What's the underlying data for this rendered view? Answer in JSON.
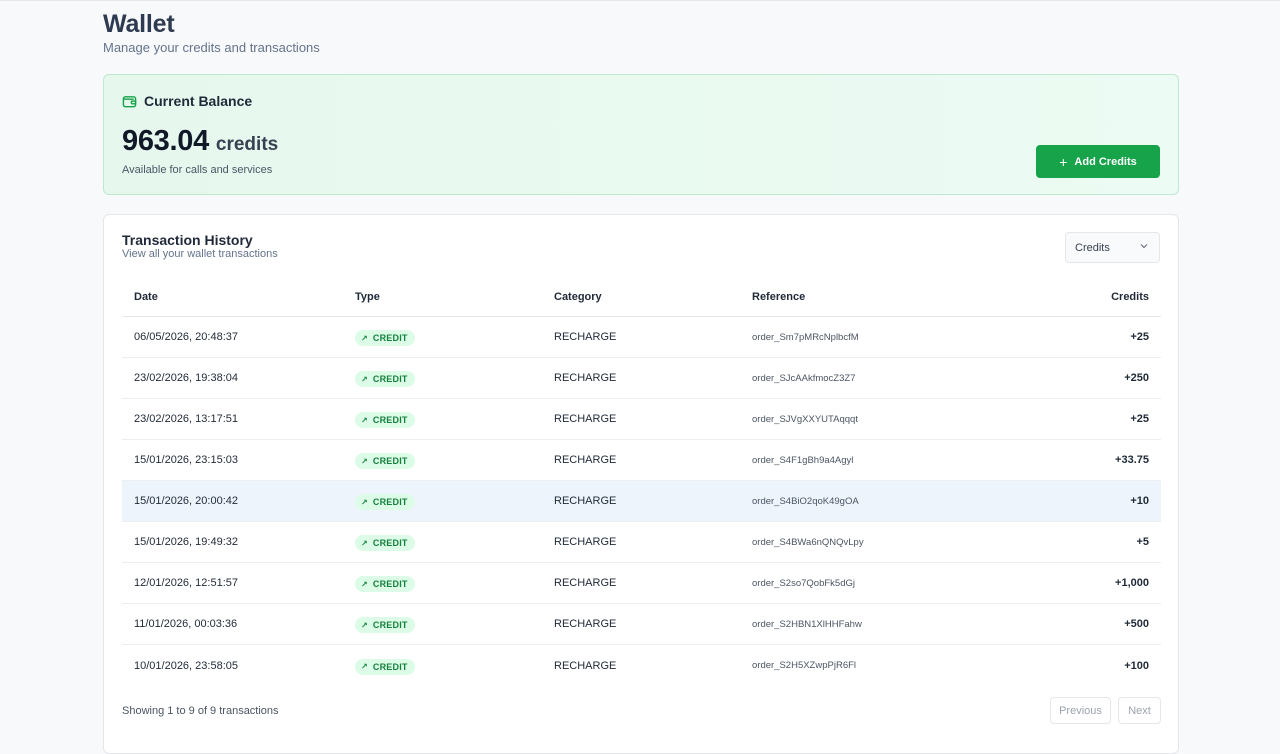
{
  "header": {
    "title": "Wallet",
    "subtitle": "Manage your credits and transactions"
  },
  "balance": {
    "title": "Current Balance",
    "icon": "wallet-icon",
    "amount": "963.04",
    "unit": "credits",
    "note": "Available for calls and services",
    "add_button_label": "Add Credits",
    "accent": "#16a34a"
  },
  "history": {
    "title": "Transaction History",
    "subtitle": "View all your wallet transactions",
    "filter_value": "Credits",
    "columns": [
      "Date",
      "Type",
      "Category",
      "Reference",
      "Credits"
    ],
    "rows": [
      {
        "date": "06/05/2026, 20:48:37",
        "type": "CREDIT",
        "category": "RECHARGE",
        "reference": "order_Sm7pMRcNplbcfM",
        "credits": "+25"
      },
      {
        "date": "23/02/2026, 19:38:04",
        "type": "CREDIT",
        "category": "RECHARGE",
        "reference": "order_SJcAAkfmocZ3Z7",
        "credits": "+250"
      },
      {
        "date": "23/02/2026, 13:17:51",
        "type": "CREDIT",
        "category": "RECHARGE",
        "reference": "order_SJVgXXYUTAqqqt",
        "credits": "+25"
      },
      {
        "date": "15/01/2026, 23:15:03",
        "type": "CREDIT",
        "category": "RECHARGE",
        "reference": "order_S4F1gBh9a4Agyl",
        "credits": "+33.75"
      },
      {
        "date": "15/01/2026, 20:00:42",
        "type": "CREDIT",
        "category": "RECHARGE",
        "reference": "order_S4BiO2qoK49gOA",
        "credits": "+10"
      },
      {
        "date": "15/01/2026, 19:49:32",
        "type": "CREDIT",
        "category": "RECHARGE",
        "reference": "order_S4BWa6nQNQvLpy",
        "credits": "+5"
      },
      {
        "date": "12/01/2026, 12:51:57",
        "type": "CREDIT",
        "category": "RECHARGE",
        "reference": "order_S2so7QobFk5dGj",
        "credits": "+1,000"
      },
      {
        "date": "11/01/2026, 00:03:36",
        "type": "CREDIT",
        "category": "RECHARGE",
        "reference": "order_S2HBN1XlHHFahw",
        "credits": "+500"
      },
      {
        "date": "10/01/2026, 23:58:05",
        "type": "CREDIT",
        "category": "RECHARGE",
        "reference": "order_S2H5XZwpPjR6Fl",
        "credits": "+100"
      }
    ],
    "pagination": {
      "info": "Showing 1 to 9 of 9 transactions",
      "previous_label": "Previous",
      "next_label": "Next"
    }
  }
}
